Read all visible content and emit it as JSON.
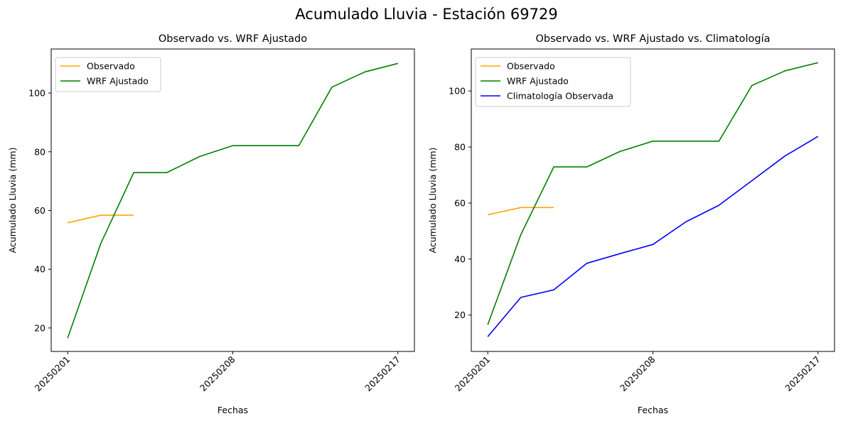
{
  "figure": {
    "title": "Acumulado Lluvia - Estación 69729"
  },
  "chart_data": [
    {
      "type": "line",
      "title": "Observado vs. WRF Ajustado",
      "xlabel": "Fechas",
      "ylabel": "Acumulado Lluvia (mm)",
      "x_ticks": [
        "20250201",
        "20250208",
        "20250217"
      ],
      "ylim": [
        12,
        115
      ],
      "y_ticks": [
        20,
        40,
        60,
        80,
        100
      ],
      "legend_position": "top-left",
      "grid": false,
      "series": [
        {
          "name": "Observado",
          "color": "#ffa500",
          "values": [
            55.8,
            58.4,
            58.4,
            null,
            null,
            null,
            null,
            null,
            null,
            null,
            null
          ]
        },
        {
          "name": "WRF Ajustado",
          "color": "#008000",
          "values": [
            16.6,
            48.7,
            72.9,
            72.9,
            78.4,
            82.1,
            82.1,
            82.1,
            102.0,
            107.2,
            110.1
          ]
        }
      ]
    },
    {
      "type": "line",
      "title": "Observado vs. WRF Ajustado vs. Climatología",
      "xlabel": "Fechas",
      "ylabel": "Acumulado Lluvia (mm)",
      "x_ticks": [
        "20250201",
        "20250208",
        "20250217"
      ],
      "ylim": [
        7,
        115
      ],
      "y_ticks": [
        20,
        40,
        60,
        80,
        100
      ],
      "legend_position": "top-left",
      "grid": false,
      "series": [
        {
          "name": "Observado",
          "color": "#ffa500",
          "values": [
            55.8,
            58.4,
            58.4,
            null,
            null,
            null,
            null,
            null,
            null,
            null,
            null
          ]
        },
        {
          "name": "WRF Ajustado",
          "color": "#008000",
          "values": [
            16.6,
            48.7,
            72.9,
            72.9,
            78.4,
            82.1,
            82.1,
            82.1,
            102.0,
            107.2,
            110.1
          ]
        },
        {
          "name": "Climatología Observada",
          "color": "#0000ff",
          "values": [
            12.3,
            26.3,
            29.0,
            38.5,
            41.9,
            45.2,
            53.3,
            59.2,
            68.0,
            76.8,
            83.8
          ]
        }
      ]
    }
  ]
}
